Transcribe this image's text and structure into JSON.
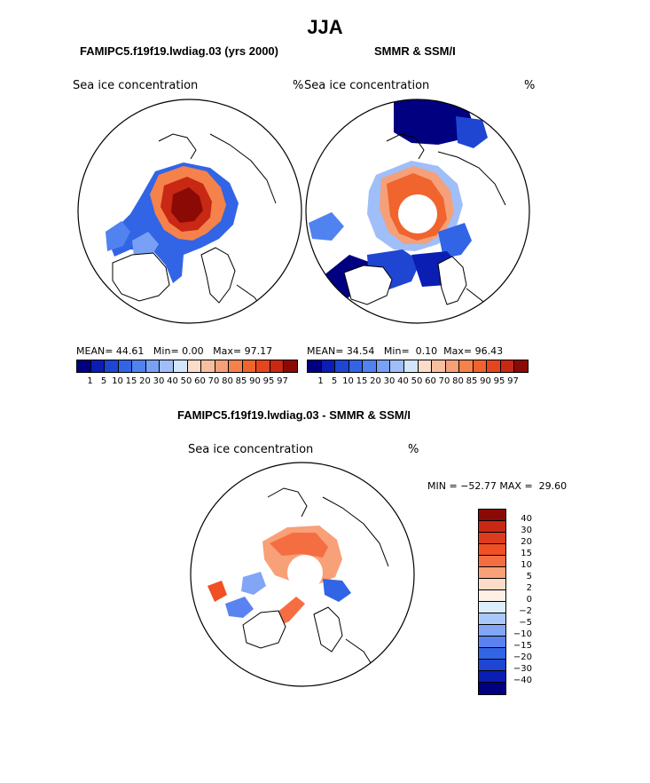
{
  "page": {
    "season": "JJA"
  },
  "panel1": {
    "title": "FAMIPC5.f19f19.lwdiag.03 (yrs 2000)",
    "variable": "Sea ice concentration",
    "units": "%",
    "stats": {
      "mean_label": "MEAN=",
      "mean": "44.61",
      "min_label": "Min=",
      "min": "0.00",
      "max_label": "Max=",
      "max": "97.17"
    }
  },
  "panel2": {
    "title": "SMMR & SSM/I",
    "variable": "Sea ice concentration",
    "units": "%",
    "stats": {
      "mean_label": "MEAN=",
      "mean": "34.54",
      "min_label": "Min=",
      "min": "0.10",
      "max_label": "Max=",
      "max": "96.43"
    }
  },
  "panel3": {
    "title": "FAMIPC5.f19f19.lwdiag.03 - SMMR & SSM/I",
    "variable": "Sea ice concentration",
    "units": "%",
    "minmax": {
      "min_label": "MIN =",
      "min": "−52.77",
      "max_label": "MAX =",
      "max": "29.60"
    }
  },
  "colors": {
    "conc_scale": [
      "#000080",
      "#0a1eb4",
      "#1e46d2",
      "#3264e6",
      "#5082f0",
      "#78a0f5",
      "#a0bef8",
      "#d2e6fa",
      "#fadcc8",
      "#f8bea0",
      "#f5a078",
      "#f5824b",
      "#f0642d",
      "#e6461e",
      "#c82814",
      "#8c0a05"
    ],
    "diff_scale": [
      "#8c0a05",
      "#c82814",
      "#dc3c1e",
      "#f05023",
      "#f56e41",
      "#f8a078",
      "#fadcc8",
      "#fff0e6",
      "#dceefb",
      "#aac8fa",
      "#82a5f5",
      "#5a82f0",
      "#3264e6",
      "#1e46d2",
      "#0a1eb4",
      "#000080"
    ],
    "land_outline": "#000000"
  },
  "chart_data": [
    {
      "type": "heatmap",
      "projection": "north polar stereographic",
      "title": "FAMIPC5.f19f19.lwdiag.03 (yrs 2000)",
      "variable": "Sea ice concentration",
      "units": "%",
      "mean": 44.61,
      "min": 0.0,
      "max": 97.17,
      "colorbar_ticks": [
        "1",
        "5",
        "10",
        "15",
        "20",
        "30",
        "40",
        "50",
        "60",
        "70",
        "80",
        "85",
        "90",
        "95",
        "97"
      ]
    },
    {
      "type": "heatmap",
      "projection": "north polar stereographic",
      "title": "SMMR & SSM/I",
      "variable": "Sea ice concentration",
      "units": "%",
      "mean": 34.54,
      "min": 0.1,
      "max": 96.43,
      "colorbar_ticks": [
        "1",
        "5",
        "10",
        "15",
        "20",
        "30",
        "40",
        "50",
        "60",
        "70",
        "80",
        "85",
        "90",
        "95",
        "97"
      ]
    },
    {
      "type": "heatmap",
      "projection": "north polar stereographic",
      "title": "FAMIPC5.f19f19.lwdiag.03 - SMMR & SSM/I",
      "variable": "Sea ice concentration",
      "units": "%",
      "min": -52.77,
      "max": 29.6,
      "colorbar_ticks": [
        "40",
        "30",
        "20",
        "15",
        "10",
        "5",
        "2",
        "0",
        "−2",
        "−5",
        "−10",
        "−15",
        "−20",
        "−30",
        "−40"
      ]
    }
  ]
}
